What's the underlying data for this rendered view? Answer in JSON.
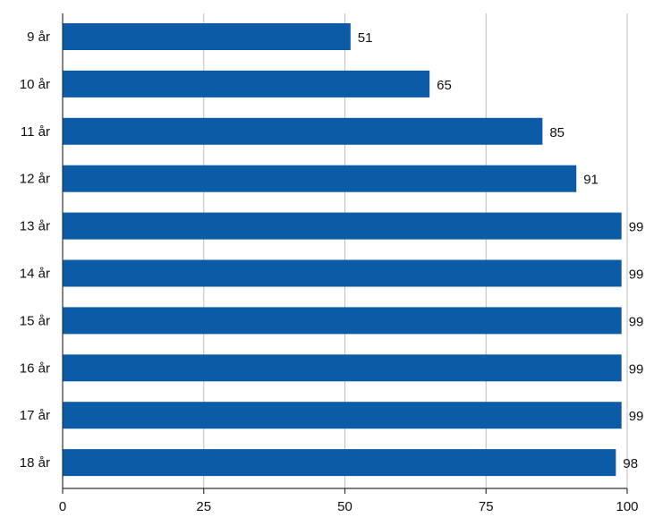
{
  "chart_data": {
    "type": "bar",
    "orientation": "horizontal",
    "title": "",
    "xlabel": "",
    "ylabel": "",
    "categories": [
      "9 år",
      "10 år",
      "11 år",
      "12 år",
      "13 år",
      "14 år",
      "15 år",
      "16 år",
      "17 år",
      "18 år"
    ],
    "values": [
      51,
      65,
      85,
      91,
      99,
      99,
      99,
      99,
      99,
      98
    ],
    "value_labels": [
      "51",
      "65",
      "85",
      "91",
      "99",
      "99",
      "99",
      "99",
      "99",
      "98"
    ],
    "xlim": [
      0,
      100
    ],
    "x_ticks": [
      0,
      25,
      50,
      75,
      100
    ],
    "x_tick_labels": [
      "0",
      "25",
      "50",
      "75",
      "100"
    ],
    "grid": "vertical",
    "legend": "none",
    "bar_color": "#0b5ba6"
  }
}
